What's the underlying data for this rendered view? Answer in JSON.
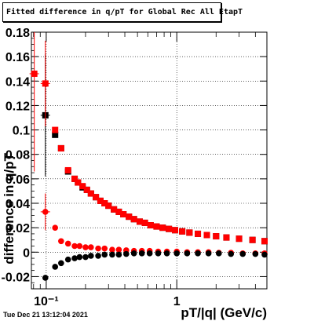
{
  "title": "Fitted difference in q/pT for Global Rec All EtapT",
  "timestamp": "Tue Dec 21 13:12:04 2021",
  "chart_data": {
    "type": "scatter",
    "xlabel": "pT/|q| (GeV/c)",
    "ylabel": "difference in q/pT",
    "x_scale": "log",
    "xlim": [
      0.077,
      4.9
    ],
    "ylim": [
      -0.03,
      0.18
    ],
    "x_ticks": [
      {
        "value": 0.1,
        "label": "10⁻¹"
      },
      {
        "value": 1,
        "label": "1"
      }
    ],
    "y_ticks": [
      -0.02,
      0,
      0.02,
      0.04,
      0.06,
      0.08,
      0.1,
      0.12,
      0.14,
      0.16,
      0.18
    ],
    "y_tick_labels": [
      "-0.02",
      "0",
      "0.02",
      "0.04",
      "0.06",
      "0.08",
      "0.1",
      "0.12",
      "0.14",
      "0.16",
      "0.18"
    ],
    "grid": true,
    "series": [
      {
        "color": "#000000",
        "marker": "square",
        "points": [
          [
            0.0985,
            0.112
          ],
          [
            0.117,
            0.096
          ],
          [
            0.13,
            0.085
          ],
          [
            0.147,
            0.066
          ],
          [
            0.165,
            0.06
          ],
          [
            0.175,
            0.057
          ],
          [
            0.19,
            0.053
          ],
          [
            0.205,
            0.051
          ],
          [
            0.22,
            0.048
          ],
          [
            0.24,
            0.045
          ],
          [
            0.26,
            0.042
          ],
          [
            0.28,
            0.04
          ],
          [
            0.3,
            0.038
          ],
          [
            0.33,
            0.035
          ],
          [
            0.36,
            0.033
          ],
          [
            0.39,
            0.031
          ],
          [
            0.43,
            0.029
          ],
          [
            0.47,
            0.027
          ],
          [
            0.52,
            0.025
          ],
          [
            0.57,
            0.024
          ],
          [
            0.63,
            0.022
          ],
          [
            0.7,
            0.021
          ],
          [
            0.78,
            0.02
          ],
          [
            0.87,
            0.019
          ],
          [
            0.97,
            0.018
          ],
          [
            1.1,
            0.017
          ],
          [
            1.25,
            0.016
          ],
          [
            1.45,
            0.015
          ],
          [
            1.7,
            0.014
          ],
          [
            2.0,
            0.013
          ],
          [
            2.4,
            0.012
          ],
          [
            3.0,
            0.011
          ],
          [
            3.8,
            0.01
          ],
          [
            4.7,
            0.009
          ]
        ],
        "y_err": [
          [
            0.0985,
            0.05
          ]
        ]
      },
      {
        "color": "#ff0000",
        "marker": "square",
        "points": [
          [
            0.081,
            0.146
          ],
          [
            0.0985,
            0.138
          ],
          [
            0.117,
            0.1
          ],
          [
            0.13,
            0.085
          ],
          [
            0.147,
            0.067
          ],
          [
            0.165,
            0.06
          ],
          [
            0.175,
            0.057
          ],
          [
            0.19,
            0.054
          ],
          [
            0.205,
            0.051
          ],
          [
            0.22,
            0.048
          ],
          [
            0.24,
            0.045
          ],
          [
            0.26,
            0.042
          ],
          [
            0.28,
            0.04
          ],
          [
            0.3,
            0.038
          ],
          [
            0.33,
            0.035
          ],
          [
            0.36,
            0.033
          ],
          [
            0.39,
            0.031
          ],
          [
            0.43,
            0.029
          ],
          [
            0.47,
            0.027
          ],
          [
            0.52,
            0.025
          ],
          [
            0.57,
            0.024
          ],
          [
            0.63,
            0.022
          ],
          [
            0.7,
            0.021
          ],
          [
            0.78,
            0.02
          ],
          [
            0.87,
            0.019
          ],
          [
            0.97,
            0.018
          ],
          [
            1.1,
            0.017
          ],
          [
            1.25,
            0.016
          ],
          [
            1.45,
            0.015
          ],
          [
            1.7,
            0.014
          ],
          [
            2.0,
            0.013
          ],
          [
            2.4,
            0.012
          ],
          [
            3.0,
            0.011
          ],
          [
            3.8,
            0.01
          ],
          [
            4.7,
            0.009
          ]
        ],
        "y_err": [
          [
            0.081,
            0.08
          ],
          [
            0.0985,
            0.035
          ]
        ]
      },
      {
        "color": "#ff0000",
        "marker": "circle",
        "points": [
          [
            0.0985,
            0.033
          ],
          [
            0.117,
            0.02
          ],
          [
            0.13,
            0.009
          ],
          [
            0.147,
            0.007
          ],
          [
            0.165,
            0.005
          ],
          [
            0.18,
            0.005
          ],
          [
            0.2,
            0.004
          ],
          [
            0.22,
            0.004
          ],
          [
            0.25,
            0.003
          ],
          [
            0.28,
            0.003
          ],
          [
            0.32,
            0.002
          ],
          [
            0.36,
            0.002
          ],
          [
            0.41,
            0.0015
          ],
          [
            0.47,
            0.001
          ],
          [
            0.54,
            0.001
          ],
          [
            0.62,
            0.001
          ],
          [
            0.72,
            0.0005
          ],
          [
            0.84,
            0.0005
          ],
          [
            1.0,
            0.0005
          ],
          [
            1.2,
            0.0
          ],
          [
            1.45,
            0.0
          ],
          [
            1.75,
            0.0
          ],
          [
            2.1,
            -0.0005
          ],
          [
            2.6,
            -0.0005
          ],
          [
            3.2,
            -0.001
          ],
          [
            4.0,
            -0.001
          ],
          [
            4.7,
            -0.001
          ]
        ],
        "y_err": [
          [
            0.0985,
            0.015
          ]
        ]
      },
      {
        "color": "#000000",
        "marker": "circle",
        "points": [
          [
            0.0985,
            -0.021
          ],
          [
            0.117,
            -0.012
          ],
          [
            0.13,
            -0.009
          ],
          [
            0.147,
            -0.006
          ],
          [
            0.165,
            -0.005
          ],
          [
            0.18,
            -0.004
          ],
          [
            0.2,
            -0.004
          ],
          [
            0.22,
            -0.003
          ],
          [
            0.25,
            -0.003
          ],
          [
            0.28,
            -0.002
          ],
          [
            0.32,
            -0.002
          ],
          [
            0.36,
            -0.002
          ],
          [
            0.41,
            -0.0015
          ],
          [
            0.47,
            -0.001
          ],
          [
            0.54,
            -0.001
          ],
          [
            0.62,
            -0.001
          ],
          [
            0.72,
            -0.001
          ],
          [
            0.84,
            -0.001
          ],
          [
            1.0,
            -0.001
          ],
          [
            1.2,
            -0.001
          ],
          [
            1.45,
            -0.001
          ],
          [
            1.75,
            -0.001
          ],
          [
            2.1,
            -0.001
          ],
          [
            2.6,
            -0.0015
          ],
          [
            3.2,
            -0.0015
          ],
          [
            4.0,
            -0.0015
          ],
          [
            4.7,
            -0.002
          ]
        ]
      }
    ]
  }
}
